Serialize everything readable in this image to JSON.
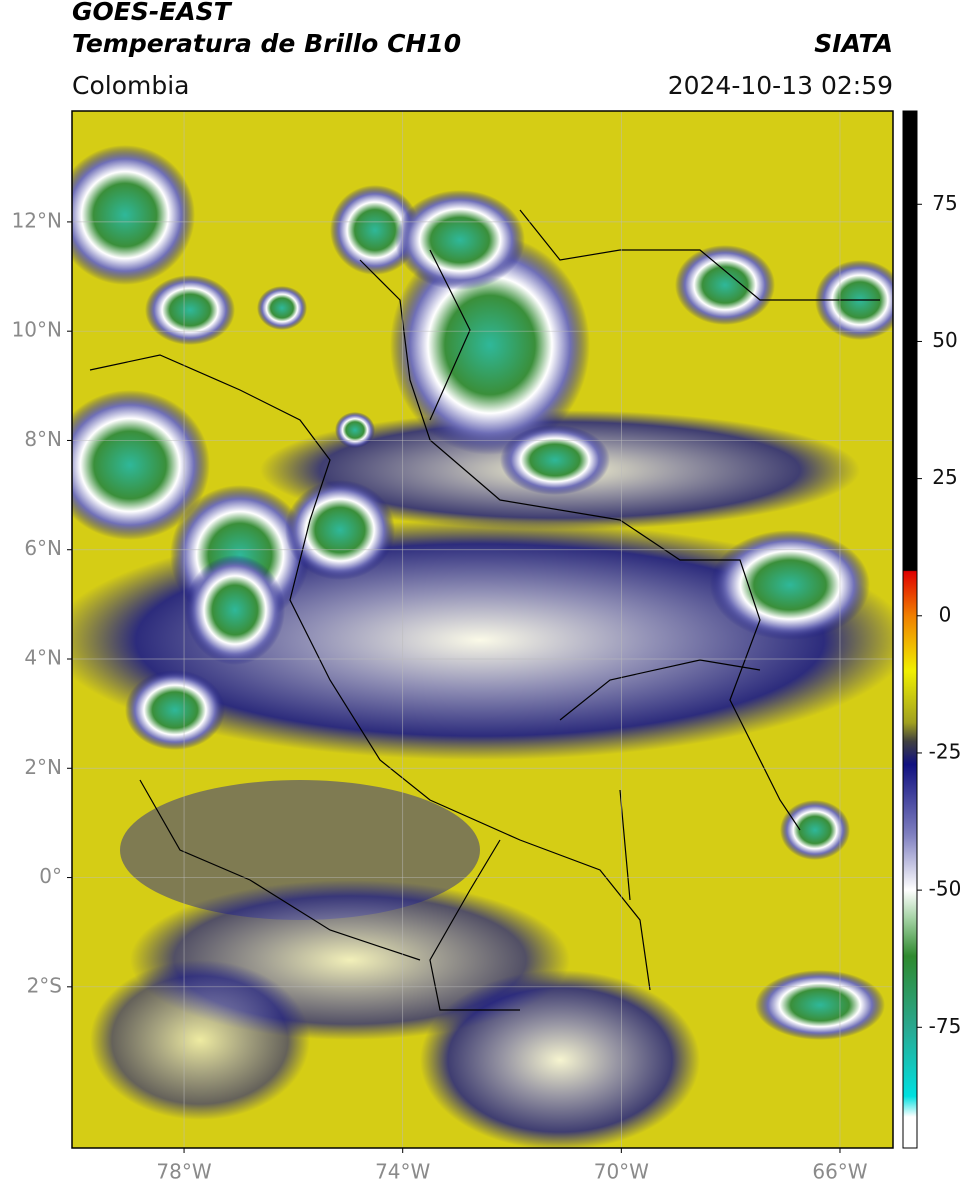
{
  "header": {
    "title": "GOES-EAST",
    "subtitle": "Temperatura de Brillo CH10",
    "source": "SIATA",
    "region": "Colombia",
    "datetime": "2024-10-13 02:59"
  },
  "map": {
    "xlim": [
      -80.05,
      -65.03
    ],
    "ylim": [
      -4.95,
      14.03
    ],
    "grid": true,
    "xticks": [
      {
        "value": -78,
        "label": "78°W"
      },
      {
        "value": -74,
        "label": "74°W"
      },
      {
        "value": -70,
        "label": "70°W"
      },
      {
        "value": -66,
        "label": "66°W"
      }
    ],
    "yticks": [
      {
        "value": 12,
        "label": "12°N"
      },
      {
        "value": 10,
        "label": "10°N"
      },
      {
        "value": 8,
        "label": "8°N"
      },
      {
        "value": 6,
        "label": "6°N"
      },
      {
        "value": 4,
        "label": "4°N"
      },
      {
        "value": 2,
        "label": "2°N"
      },
      {
        "value": 0,
        "label": "0°"
      },
      {
        "value": -2,
        "label": "2°S"
      }
    ]
  },
  "colorbar": {
    "lim": [
      -97,
      92
    ],
    "ticks": [
      75,
      50,
      25,
      0,
      -25,
      -50,
      -75
    ]
  }
}
